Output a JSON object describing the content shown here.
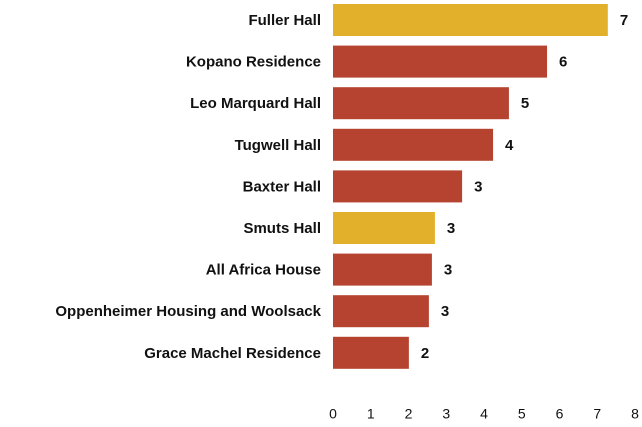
{
  "chart_data": {
    "type": "bar",
    "orientation": "horizontal",
    "categories": [
      "Fuller Hall",
      "Kopano Residence",
      "Leo Marquard Hall",
      "Tugwell Hall",
      "Baxter Hall",
      "Smuts Hall",
      "All Africa House",
      "Oppenheimer Housing and Woolsack",
      "Grace Machel Residence"
    ],
    "values": [
      7.28,
      5.67,
      4.66,
      4.24,
      3.42,
      2.7,
      2.62,
      2.54,
      2.01
    ],
    "value_labels": [
      "7",
      "6",
      "5",
      "4",
      "3",
      "3",
      "3",
      "3",
      "2"
    ],
    "colors": [
      "#e2b02a",
      "#b5432f",
      "#b5432f",
      "#b5432f",
      "#b5432f",
      "#e2b02a",
      "#b5432f",
      "#b5432f",
      "#b5432f"
    ],
    "xlim": [
      0,
      8
    ],
    "xticks": [
      0,
      1,
      2,
      3,
      4,
      5,
      6,
      7,
      8
    ],
    "grid": false
  }
}
